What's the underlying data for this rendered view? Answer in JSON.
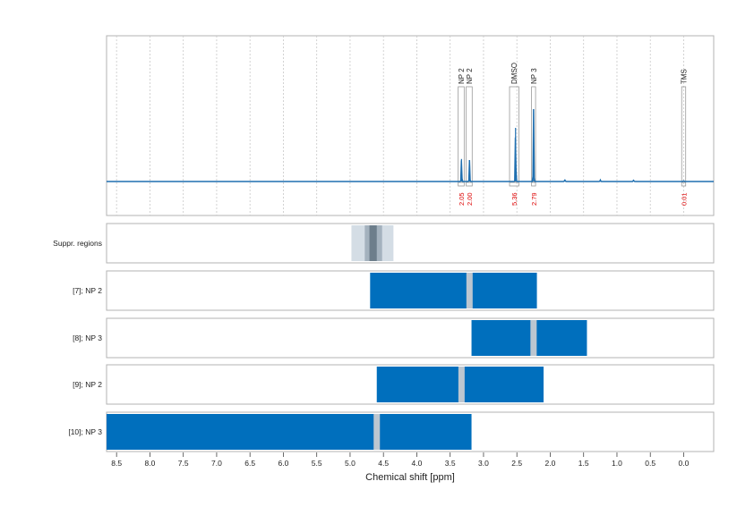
{
  "chart_data": {
    "type": "line",
    "xlabel": "Chemical shift [ppm]",
    "xlim": [
      8.65,
      -0.45
    ],
    "x_ticks": [
      "8.5",
      "8.0",
      "7.5",
      "7.0",
      "6.5",
      "6.0",
      "5.5",
      "5.0",
      "4.5",
      "4.0",
      "3.5",
      "3.0",
      "2.5",
      "2.0",
      "1.5",
      "1.0",
      "0.5",
      "0.0"
    ],
    "spectrum": {
      "color": "#1f6fb0",
      "peaks": [
        {
          "x": 3.33,
          "height": 0.42
        },
        {
          "x": 3.21,
          "height": 0.4
        },
        {
          "x": 2.52,
          "height": 1.0
        },
        {
          "x": 2.25,
          "height": 1.35
        },
        {
          "x": 1.78,
          "height": 0.04
        },
        {
          "x": 1.25,
          "height": 0.03
        },
        {
          "x": 0.75,
          "height": 0.03
        },
        {
          "x": 0.0,
          "height": 0.02
        }
      ]
    },
    "integration_regions": [
      {
        "label": "NP 2",
        "from": 3.38,
        "to": 3.29,
        "value": "2.05"
      },
      {
        "label": "NP 2",
        "from": 3.26,
        "to": 3.17,
        "value": "2.00"
      },
      {
        "label": "DMSO",
        "from": 2.61,
        "to": 2.47,
        "value": "5.36"
      },
      {
        "label": "NP 3",
        "from": 2.28,
        "to": 2.22,
        "value": "2.79"
      },
      {
        "label": "TMS",
        "from": 0.03,
        "to": -0.03,
        "value": "0.01"
      }
    ],
    "suppression": {
      "label": "Suppr. regions",
      "bands": [
        {
          "from": 4.98,
          "to": 4.35,
          "color": "#d4dde5"
        },
        {
          "from": 4.78,
          "to": 4.52,
          "color": "#a4b2be"
        },
        {
          "from": 4.71,
          "to": 4.6,
          "color": "#6d7e8b"
        }
      ]
    },
    "windows": [
      {
        "label": "[7]; NP 2",
        "from": 4.7,
        "to": 2.2,
        "marker": 3.21
      },
      {
        "label": "[8]; NP 3",
        "from": 3.18,
        "to": 1.45,
        "marker": 2.25
      },
      {
        "label": "[9]; NP 2",
        "from": 4.6,
        "to": 2.1,
        "marker": 3.33
      },
      {
        "label": "[10]; NP 3",
        "from": 8.65,
        "to": 3.18,
        "marker": 4.6
      }
    ],
    "bar_color": "#006fbd",
    "marker_color": "#bcc6d0",
    "label_color": "#dd0000"
  }
}
